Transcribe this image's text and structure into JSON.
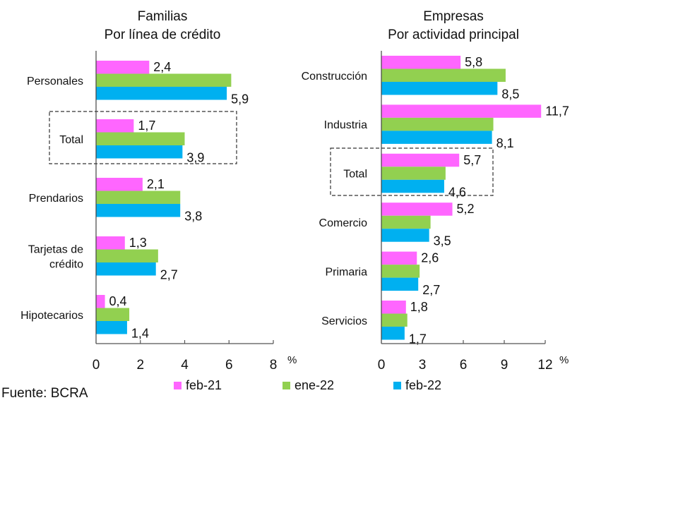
{
  "source": "Fuente: BCRA",
  "legend": [
    {
      "label": "feb-21",
      "color": "#ff66ff"
    },
    {
      "label": "ene-22",
      "color": "#92d050"
    },
    {
      "label": "feb-22",
      "color": "#00b0f0"
    }
  ],
  "chart_data": [
    {
      "type": "bar",
      "orientation": "horizontal",
      "title": "Familias",
      "subtitle": "Por línea de crédito",
      "unit": "%",
      "xlim": [
        0,
        8
      ],
      "xticks": [
        0,
        2,
        4,
        6,
        8
      ],
      "categories": [
        "Personales",
        "Total",
        "Prendarios",
        "Tarjetas de crédito",
        "Hipotecarios"
      ],
      "highlighted_category": "Total",
      "series": [
        {
          "name": "feb-21",
          "values": [
            2.4,
            1.7,
            2.1,
            1.3,
            0.4
          ],
          "labeled": true
        },
        {
          "name": "ene-22",
          "values": [
            6.1,
            4.0,
            3.8,
            2.8,
            1.5
          ],
          "labeled": false
        },
        {
          "name": "feb-22",
          "values": [
            5.9,
            3.9,
            3.8,
            2.7,
            1.4
          ],
          "labeled": true
        }
      ]
    },
    {
      "type": "bar",
      "orientation": "horizontal",
      "title": "Empresas",
      "subtitle": "Por actividad principal",
      "unit": "%",
      "xlim": [
        0,
        12
      ],
      "xticks": [
        0,
        3,
        6,
        9,
        12
      ],
      "categories": [
        "Construcción",
        "Industria",
        "Total",
        "Comercio",
        "Primaria",
        "Servicios"
      ],
      "highlighted_category": "Total",
      "series": [
        {
          "name": "feb-21",
          "values": [
            5.8,
            11.7,
            5.7,
            5.2,
            2.6,
            1.8
          ],
          "labeled": true
        },
        {
          "name": "ene-22",
          "values": [
            9.1,
            8.2,
            4.7,
            3.6,
            2.8,
            1.9
          ],
          "labeled": false
        },
        {
          "name": "feb-22",
          "values": [
            8.5,
            8.1,
            4.6,
            3.5,
            2.7,
            1.7
          ],
          "labeled": true
        }
      ]
    }
  ]
}
